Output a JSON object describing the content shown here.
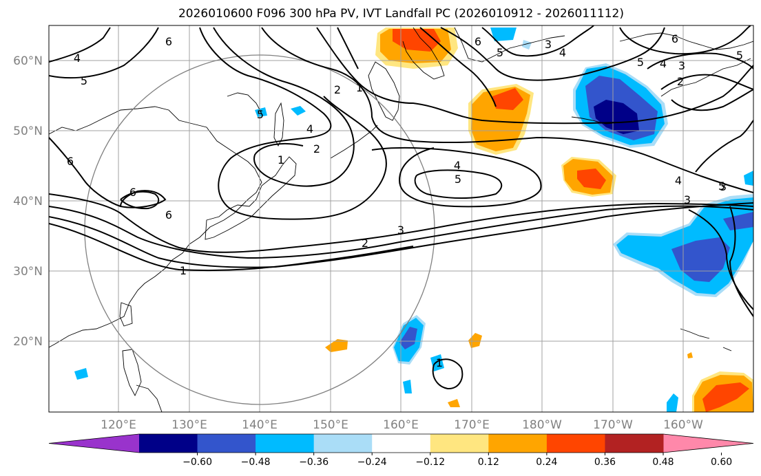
{
  "title": "2026010600 F096 300 hPa PV, IVT Landfall PC (2026010912 - 2026011112)",
  "lat_labels": [
    "60°N",
    "50°N",
    "40°N",
    "30°N",
    "20°N"
  ],
  "lon_labels": [
    "120°E",
    "130°E",
    "140°E",
    "150°E",
    "160°E",
    "170°E",
    "180°W",
    "170°W",
    "160°W"
  ],
  "colorbar": {
    "ticks": [
      "−0.60",
      "−0.48",
      "−0.36",
      "−0.24",
      "−0.12",
      "0.12",
      "0.24",
      "0.36",
      "0.48",
      "0.60"
    ],
    "colors": [
      "#9933cc",
      "#000088",
      "#3355cc",
      "#00bbff",
      "#aaddf7",
      "#ffffff",
      "#ffe680",
      "#ffa500",
      "#ff4500",
      "#b22222",
      "#ff88aa"
    ]
  },
  "contour_labels": [
    "6",
    "4",
    "5",
    "6",
    "2",
    "1",
    "5",
    "4",
    "2",
    "1",
    "6",
    "6",
    "4",
    "5",
    "3",
    "2",
    "1",
    "3",
    "6",
    "5",
    "3",
    "4",
    "5",
    "3",
    "2",
    "4",
    "5",
    "3",
    "5",
    "4",
    "1",
    "6"
  ]
}
